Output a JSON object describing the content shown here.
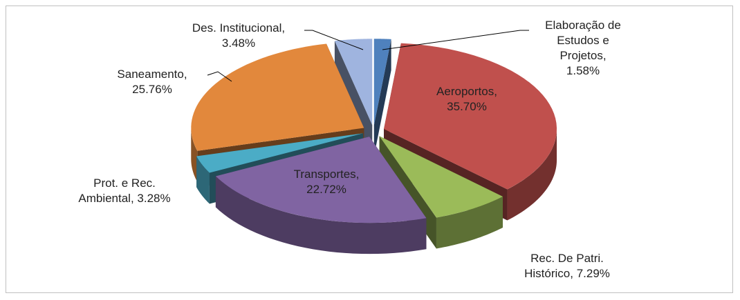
{
  "chart_data": {
    "type": "pie3d",
    "categories": [
      "Elaboração de Estudos e Projetos,",
      "Aeroportos,",
      "Rec. De Patri. Histórico,",
      "Transportes,",
      "Prot. e Rec. Ambiental,",
      "Saneamento,",
      "Des. Institucional,"
    ],
    "values": [
      1.58,
      35.7,
      7.29,
      22.72,
      3.28,
      25.76,
      3.48
    ],
    "value_labels": [
      "1.58%",
      "35.70%",
      "7.29%",
      "22.72%",
      "3.28%",
      "25.76%",
      "3.48%"
    ],
    "colors": [
      "#4f81bd",
      "#c0504d",
      "#9bbb59",
      "#8064a2",
      "#4bacc6",
      "#e2883c",
      "#9fb4df"
    ]
  }
}
